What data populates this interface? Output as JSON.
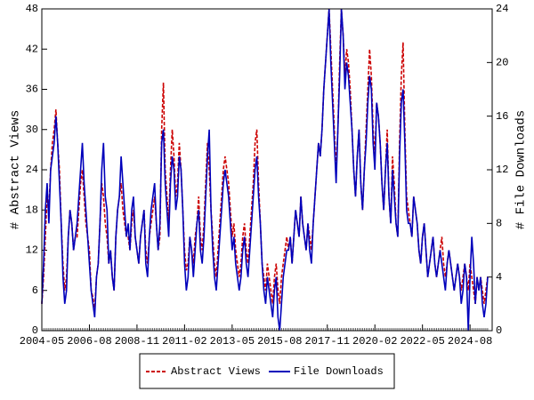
{
  "chart_data": {
    "type": "line",
    "y_label": "# Abstract Views",
    "y2_label": "# File Downloads",
    "x": [
      "2004-05",
      "2004-06",
      "2004-07",
      "2004-08",
      "2004-09",
      "2004-10",
      "2004-11",
      "2004-12",
      "2005-01",
      "2005-02",
      "2005-03",
      "2005-04",
      "2005-05",
      "2005-06",
      "2005-07",
      "2005-08",
      "2005-09",
      "2005-10",
      "2005-11",
      "2005-12",
      "2006-01",
      "2006-02",
      "2006-03",
      "2006-04",
      "2006-05",
      "2006-06",
      "2006-07",
      "2006-08",
      "2006-09",
      "2006-10",
      "2006-11",
      "2006-12",
      "2007-01",
      "2007-02",
      "2007-03",
      "2007-04",
      "2007-05",
      "2007-06",
      "2007-07",
      "2007-08",
      "2007-09",
      "2007-10",
      "2007-11",
      "2007-12",
      "2008-01",
      "2008-02",
      "2008-03",
      "2008-04",
      "2008-05",
      "2008-06",
      "2008-07",
      "2008-08",
      "2008-09",
      "2008-10",
      "2008-11",
      "2008-12",
      "2009-01",
      "2009-02",
      "2009-03",
      "2009-04",
      "2009-05",
      "2009-06",
      "2009-07",
      "2009-08",
      "2009-09",
      "2009-10",
      "2009-11",
      "2009-12",
      "2010-01",
      "2010-02",
      "2010-03",
      "2010-04",
      "2010-05",
      "2010-06",
      "2010-07",
      "2010-08",
      "2010-09",
      "2010-10",
      "2010-11",
      "2010-12",
      "2011-01",
      "2011-02",
      "2011-03",
      "2011-04",
      "2011-05",
      "2011-06",
      "2011-07",
      "2011-08",
      "2011-09",
      "2011-10",
      "2011-11",
      "2011-12",
      "2012-01",
      "2012-02",
      "2012-03",
      "2012-04",
      "2012-05",
      "2012-06",
      "2012-07",
      "2012-08",
      "2012-09",
      "2012-10",
      "2012-11",
      "2012-12",
      "2013-01",
      "2013-02",
      "2013-03",
      "2013-04",
      "2013-05",
      "2013-06",
      "2013-07",
      "2013-08",
      "2013-09",
      "2013-10",
      "2013-11",
      "2013-12",
      "2014-01",
      "2014-02",
      "2014-03",
      "2014-04",
      "2014-05",
      "2014-06",
      "2014-07",
      "2014-08",
      "2014-09",
      "2014-10",
      "2014-11",
      "2014-12",
      "2015-01",
      "2015-02",
      "2015-03",
      "2015-04",
      "2015-05",
      "2015-06",
      "2015-07",
      "2015-08",
      "2015-09",
      "2015-10",
      "2015-11",
      "2015-12",
      "2016-01",
      "2016-02",
      "2016-03",
      "2016-04",
      "2016-05",
      "2016-06",
      "2016-07",
      "2016-08",
      "2016-09",
      "2016-10",
      "2016-11",
      "2016-12",
      "2017-01",
      "2017-02",
      "2017-03",
      "2017-04",
      "2017-05",
      "2017-06",
      "2017-07",
      "2017-08",
      "2017-09",
      "2017-10",
      "2017-11",
      "2017-12",
      "2018-01",
      "2018-02",
      "2018-03",
      "2018-04",
      "2018-05",
      "2018-06",
      "2018-07",
      "2018-08",
      "2018-09",
      "2018-10",
      "2018-11",
      "2018-12",
      "2019-01",
      "2019-02",
      "2019-03",
      "2019-04",
      "2019-05",
      "2019-06",
      "2019-07",
      "2019-08",
      "2019-09",
      "2019-10",
      "2019-11",
      "2019-12",
      "2020-01",
      "2020-02",
      "2020-03",
      "2020-04",
      "2020-05",
      "2020-06",
      "2020-07",
      "2020-08",
      "2020-09",
      "2020-10",
      "2020-11",
      "2020-12",
      "2021-01",
      "2021-02",
      "2021-03",
      "2021-04",
      "2021-05",
      "2021-06",
      "2021-07",
      "2021-08",
      "2021-09",
      "2021-10",
      "2021-11",
      "2021-12",
      "2022-01",
      "2022-02",
      "2022-03",
      "2022-04",
      "2022-05",
      "2022-06",
      "2022-07",
      "2022-08",
      "2022-09",
      "2022-10",
      "2022-11",
      "2022-12",
      "2023-01",
      "2023-02",
      "2023-03",
      "2023-04",
      "2023-05",
      "2023-06",
      "2023-07",
      "2023-08",
      "2023-09",
      "2023-10",
      "2023-11",
      "2023-12",
      "2024-01",
      "2024-02",
      "2024-03",
      "2024-04",
      "2024-05",
      "2024-06",
      "2024-07",
      "2024-08",
      "2024-09",
      "2024-10",
      "2024-11",
      "2024-12",
      "2025-01",
      "2025-02",
      "2025-03",
      "2025-04",
      "2025-05",
      "2025-06"
    ],
    "series": [
      {
        "name": "Abstract Views",
        "color": "#cc0000",
        "dash": true,
        "values": [
          4,
          8,
          14,
          20,
          18,
          24,
          28,
          30,
          33,
          28,
          24,
          16,
          10,
          6,
          8,
          14,
          18,
          16,
          12,
          14,
          14,
          18,
          22,
          24,
          20,
          16,
          14,
          12,
          6,
          5,
          3,
          8,
          10,
          16,
          22,
          20,
          16,
          14,
          10,
          12,
          8,
          6,
          14,
          18,
          20,
          22,
          18,
          16,
          14,
          14,
          12,
          16,
          18,
          14,
          12,
          10,
          14,
          16,
          18,
          12,
          10,
          14,
          16,
          18,
          20,
          16,
          12,
          14,
          30,
          37,
          24,
          20,
          16,
          24,
          30,
          26,
          20,
          22,
          28,
          24,
          18,
          12,
          9,
          10,
          14,
          12,
          10,
          14,
          16,
          20,
          14,
          12,
          16,
          22,
          28,
          24,
          18,
          14,
          10,
          8,
          12,
          16,
          20,
          24,
          26,
          24,
          22,
          18,
          14,
          16,
          12,
          10,
          8,
          10,
          14,
          16,
          12,
          10,
          14,
          18,
          22,
          28,
          30,
          22,
          16,
          10,
          8,
          6,
          10,
          8,
          6,
          4,
          8,
          10,
          6,
          4,
          8,
          10,
          12,
          14,
          12,
          14,
          10,
          14,
          18,
          16,
          14,
          20,
          16,
          14,
          12,
          16,
          14,
          12,
          16,
          20,
          24,
          28,
          26,
          30,
          36,
          40,
          44,
          48,
          42,
          36,
          30,
          24,
          30,
          40,
          48,
          44,
          38,
          42,
          40,
          36,
          30,
          24,
          20,
          26,
          30,
          22,
          18,
          24,
          30,
          36,
          42,
          38,
          30,
          26,
          34,
          32,
          28,
          22,
          18,
          24,
          30,
          20,
          16,
          26,
          22,
          16,
          14,
          28,
          38,
          43,
          30,
          20,
          18,
          16,
          14,
          20,
          18,
          16,
          12,
          10,
          14,
          16,
          12,
          8,
          10,
          12,
          14,
          10,
          8,
          10,
          12,
          14,
          10,
          8,
          10,
          12,
          10,
          8,
          6,
          8,
          10,
          8,
          6,
          8,
          10,
          8,
          6,
          10,
          8,
          6,
          4,
          8,
          6,
          8,
          6,
          4,
          6,
          8
        ]
      },
      {
        "name": "File Downloads",
        "color": "#0000bb",
        "axis": "y2",
        "values": [
          2,
          5,
          9,
          11,
          8,
          12,
          13,
          14,
          16,
          14,
          11,
          8,
          4,
          2,
          3,
          7,
          9,
          8,
          6,
          7,
          8,
          10,
          12,
          14,
          11,
          9,
          7,
          5,
          3,
          2,
          1,
          4,
          5,
          8,
          12,
          14,
          10,
          9,
          5,
          6,
          4,
          3,
          7,
          9,
          10,
          13,
          11,
          9,
          7,
          8,
          6,
          9,
          10,
          7,
          6,
          5,
          7,
          8,
          9,
          5,
          4,
          7,
          9,
          10,
          11,
          8,
          6,
          8,
          14,
          15,
          11,
          9,
          7,
          11,
          13,
          12,
          9,
          10,
          13,
          12,
          9,
          5,
          3,
          4,
          7,
          6,
          4,
          6,
          8,
          9,
          6,
          5,
          7,
          10,
          13,
          15,
          9,
          6,
          4,
          3,
          5,
          7,
          9,
          11,
          12,
          11,
          10,
          8,
          6,
          7,
          5,
          4,
          3,
          4,
          6,
          7,
          5,
          4,
          6,
          8,
          10,
          12,
          13,
          10,
          8,
          5,
          3,
          2,
          4,
          3,
          2,
          1,
          3,
          4,
          1,
          0,
          2,
          4,
          5,
          6,
          6,
          7,
          5,
          7,
          9,
          8,
          7,
          10,
          8,
          7,
          6,
          8,
          6,
          5,
          8,
          10,
          12,
          14,
          13,
          15,
          18,
          20,
          22,
          24,
          20,
          17,
          14,
          11,
          15,
          19,
          24,
          22,
          18,
          20,
          19,
          17,
          15,
          12,
          10,
          13,
          15,
          11,
          9,
          12,
          14,
          17,
          19,
          18,
          14,
          12,
          17,
          16,
          14,
          11,
          9,
          12,
          14,
          10,
          8,
          12,
          10,
          8,
          7,
          13,
          17,
          18,
          14,
          9,
          8,
          8,
          7,
          10,
          9,
          8,
          6,
          5,
          7,
          8,
          6,
          4,
          5,
          6,
          7,
          5,
          4,
          5,
          6,
          5,
          4,
          3,
          5,
          6,
          5,
          4,
          3,
          4,
          5,
          4,
          2,
          3,
          5,
          4,
          0,
          4,
          7,
          5,
          2,
          4,
          3,
          4,
          2,
          1,
          2,
          4
        ]
      }
    ],
    "xticks": [
      "2004-05",
      "2006-08",
      "2008-11",
      "2011-02",
      "2013-05",
      "2015-08",
      "2017-11",
      "2020-02",
      "2022-05",
      "2024-08"
    ],
    "ylim": [
      0,
      48
    ],
    "yticks": [
      0,
      6,
      12,
      18,
      24,
      30,
      36,
      42,
      48
    ],
    "y2lim": [
      0,
      24
    ],
    "y2ticks": [
      0,
      4,
      8,
      12,
      16,
      20,
      24
    ],
    "legend": "bottom"
  }
}
